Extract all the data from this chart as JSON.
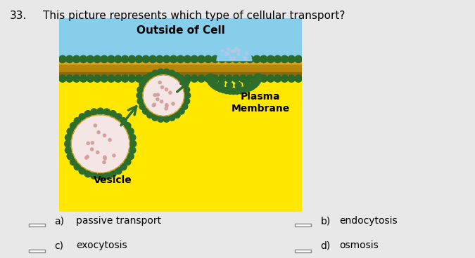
{
  "question_number": "33.",
  "question_text": "This picture represents which type of cellular transport?",
  "outside_label": "Outside of Cell",
  "vesicle_label": "Vesicle",
  "plasma_label": "Plasma\nMembrane",
  "options": [
    {
      "letter": "a)",
      "text": "passive transport",
      "col": "left"
    },
    {
      "letter": "b)",
      "text": "endocytosis",
      "col": "right"
    },
    {
      "letter": "c)",
      "text": "exocytosis",
      "col": "left"
    },
    {
      "letter": "d)",
      "text": "osmosis",
      "col": "right"
    }
  ],
  "bg_color": "#e8e8e8",
  "cell_outside_color": "#87CEEB",
  "cell_inside_color": "#FFE700",
  "membrane_color": "#8B6914",
  "vesicle_fill": "#f5e6e6",
  "vesicle_dot_color": "#d4a0a0",
  "membrane_band_top": "#c8a020",
  "spike_color": "#2d6e2d",
  "arrow_color": "#2d6e2d",
  "fig_bg": "#e8e8e8",
  "box_color": "#888888"
}
